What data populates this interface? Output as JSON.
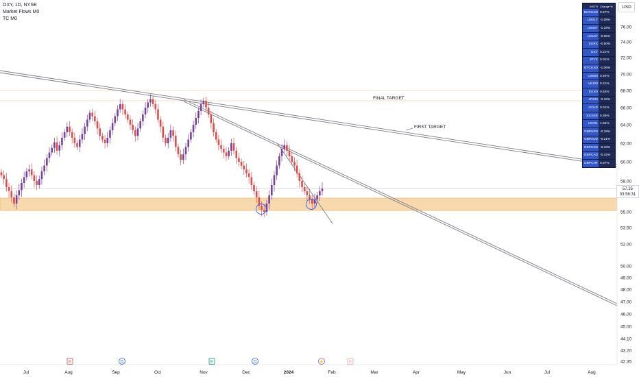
{
  "header": {
    "symbol_line": "OXY, 1D, NYSE",
    "indicator1": "Market Flows M0",
    "indicator2": "TC M0"
  },
  "currency": "USD",
  "price_badge": {
    "price": "57.25",
    "countdown": "03:56:31"
  },
  "annotations": {
    "final_target": "FINAL TARGET",
    "first_target": "FIRST TARGET"
  },
  "event_markers": [
    {
      "letter": "E",
      "color": "#e04c4c"
    },
    {
      "letter": "D",
      "color": "#2962ff"
    },
    {
      "letter": "E",
      "color": "#089981"
    },
    {
      "letter": "D",
      "color": "#2962ff"
    },
    {
      "letter": "⚡",
      "color": "#8c59d6"
    },
    {
      "letter": "E",
      "color": "#f5a0a8"
    }
  ],
  "watchlist": {
    "header": {
      "symbol": "INSTR",
      "change": "Change %"
    },
    "rows": [
      {
        "symbol": "EURUSD",
        "change": "0.57%"
      },
      {
        "symbol": "US01Y",
        "change": "-1.08%"
      },
      {
        "symbol": "US03Y",
        "change": "-1.19%"
      },
      {
        "symbol": "US10Y",
        "change": "-0.65%"
      },
      {
        "symbol": "EURX",
        "change": "-0.50%"
      },
      {
        "symbol": "DXY",
        "change": "0.21%"
      },
      {
        "symbol": "JPYX",
        "change": "0.01%"
      },
      {
        "symbol": "BTCUSD",
        "change": "-1.06%"
      },
      {
        "symbol": "US500",
        "change": "0.40%"
      },
      {
        "symbol": "UK100",
        "change": "0.21%"
      },
      {
        "symbol": "EUSD",
        "change": "0.64%"
      },
      {
        "symbol": "JP225",
        "change": "-0.16%"
      },
      {
        "symbol": "GOLD",
        "change": "0.01%"
      },
      {
        "symbol": "SILVER",
        "change": "0.36%"
      },
      {
        "symbol": "USOIL",
        "change": "1.55%"
      },
      {
        "symbol": "GBPNZD",
        "change": "-0.19%"
      },
      {
        "symbol": "GBPAUD",
        "change": "-0.21%"
      },
      {
        "symbol": "GBPUSD",
        "change": "-0.23%"
      },
      {
        "symbol": "GBPCAD",
        "change": "-0.42%"
      },
      {
        "symbol": "GBPCHF",
        "change": "0.37%"
      }
    ]
  },
  "chart_data": {
    "type": "candlestick",
    "title": "OXY, 1D, NYSE",
    "y_ticks": [
      "76.00",
      "74.00",
      "72.00",
      "70.00",
      "68.00",
      "66.00",
      "64.00",
      "62.00",
      "60.00",
      "58.00",
      "55.00",
      "53.50",
      "52.00",
      "50.00",
      "49.00",
      "48.00",
      "47.00",
      "46.00",
      "45.00",
      "44.10",
      "43.20",
      "42.35"
    ],
    "x_ticks": [
      "Jul",
      "Aug",
      "Sep",
      "Oct",
      "Nov",
      "Dec",
      "2024",
      "Feb",
      "Mar",
      "Apr",
      "May",
      "Jun",
      "Jul",
      "Aug"
    ],
    "last_price": 57.25,
    "zones": [
      {
        "name": "support-zone",
        "from": 55.2,
        "to": 56.4
      }
    ],
    "horizontal_levels": [
      66.6,
      67.8
    ],
    "colors": {
      "up": "#7b3fa0",
      "down": "#e04c4c",
      "zone": "#f7d9ad"
    },
    "candles_close": [
      58.6,
      58.2,
      57.4,
      57.0,
      56.4,
      55.8,
      56.6,
      57.1,
      57.8,
      58.4,
      59.0,
      59.2,
      58.6,
      58.0,
      57.6,
      58.2,
      59.0,
      59.6,
      60.4,
      61.0,
      61.5,
      62.1,
      61.2,
      61.8,
      62.6,
      63.2,
      63.8,
      63.2,
      62.6,
      62.0,
      61.6,
      62.4,
      63.0,
      63.8,
      64.6,
      65.4,
      65.0,
      64.4,
      63.6,
      62.8,
      62.4,
      62.0,
      62.6,
      63.4,
      64.2,
      65.0,
      65.8,
      66.4,
      65.8,
      65.2,
      64.6,
      64.0,
      63.4,
      62.8,
      63.6,
      64.4,
      65.2,
      66.0,
      66.6,
      67.0,
      66.4,
      65.8,
      64.6,
      63.8,
      62.6,
      62.0,
      62.6,
      63.4,
      62.8,
      61.6,
      60.8,
      60.2,
      60.8,
      61.6,
      62.4,
      63.2,
      64.0,
      64.8,
      65.6,
      66.4,
      66.8,
      66.0,
      65.2,
      64.2,
      63.2,
      62.4,
      61.8,
      61.4,
      61.0,
      60.6,
      61.2,
      62.0,
      61.2,
      60.4,
      60.0,
      59.6,
      59.2,
      58.8,
      58.4,
      57.6,
      57.0,
      56.4,
      55.6,
      55.2,
      55.0,
      55.8,
      56.6,
      57.6,
      58.6,
      59.6,
      60.6,
      61.4,
      61.8,
      61.2,
      60.6,
      60.0,
      59.6,
      58.8,
      58.0,
      57.4,
      57.0,
      56.6,
      56.2,
      55.8,
      56.2,
      56.6,
      57.0,
      57.25
    ]
  }
}
